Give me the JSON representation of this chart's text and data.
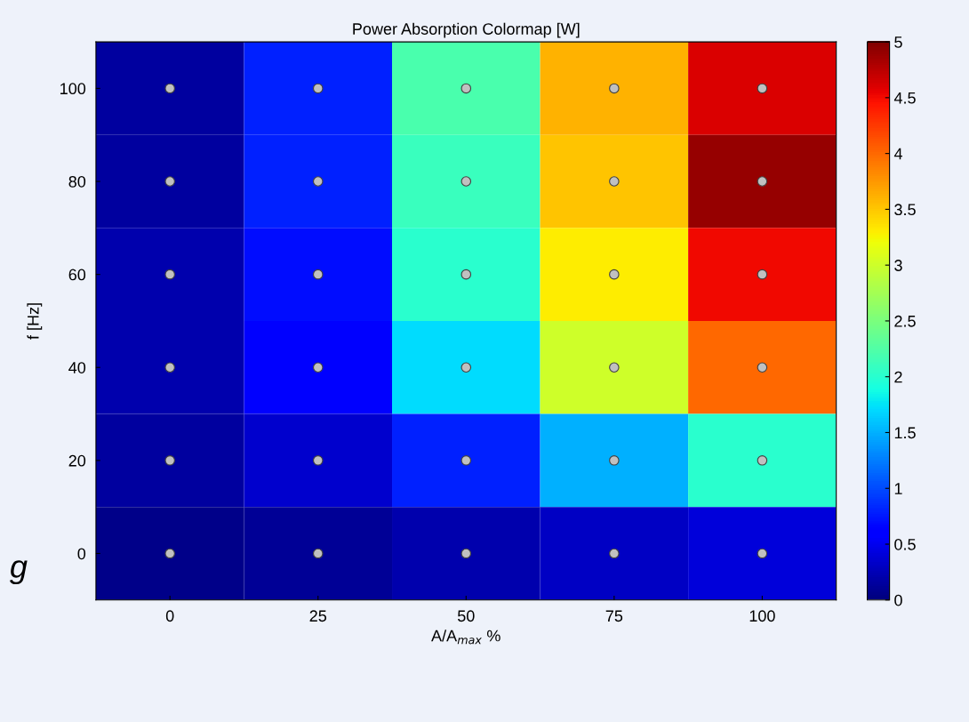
{
  "chart_data": {
    "type": "heatmap",
    "title": "Power Absorption Colormap [W]",
    "xlabel": "A/A$_{max}$ %",
    "ylabel": "f [Hz]",
    "categories": [
      "0",
      "25",
      "50",
      "75",
      "100"
    ],
    "y_categories": [
      "100",
      "80",
      "60",
      "40",
      "20",
      "0"
    ],
    "cells": [
      [
        0.15,
        0.8,
        2.2,
        3.6,
        4.6
      ],
      [
        0.15,
        0.8,
        2.1,
        3.5,
        4.9
      ],
      [
        0.2,
        0.7,
        2.0,
        3.3,
        4.5
      ],
      [
        0.2,
        0.6,
        1.7,
        3.0,
        4.0
      ],
      [
        0.15,
        0.35,
        0.8,
        1.5,
        2.0
      ],
      [
        0.05,
        0.1,
        0.2,
        0.3,
        0.4
      ]
    ],
    "clim": [
      0,
      5
    ],
    "cticks": [
      0,
      0.5,
      1,
      1.5,
      2,
      2.5,
      3,
      3.5,
      4,
      4.5,
      5
    ],
    "marker": "circle",
    "annotations": [
      "g"
    ]
  }
}
